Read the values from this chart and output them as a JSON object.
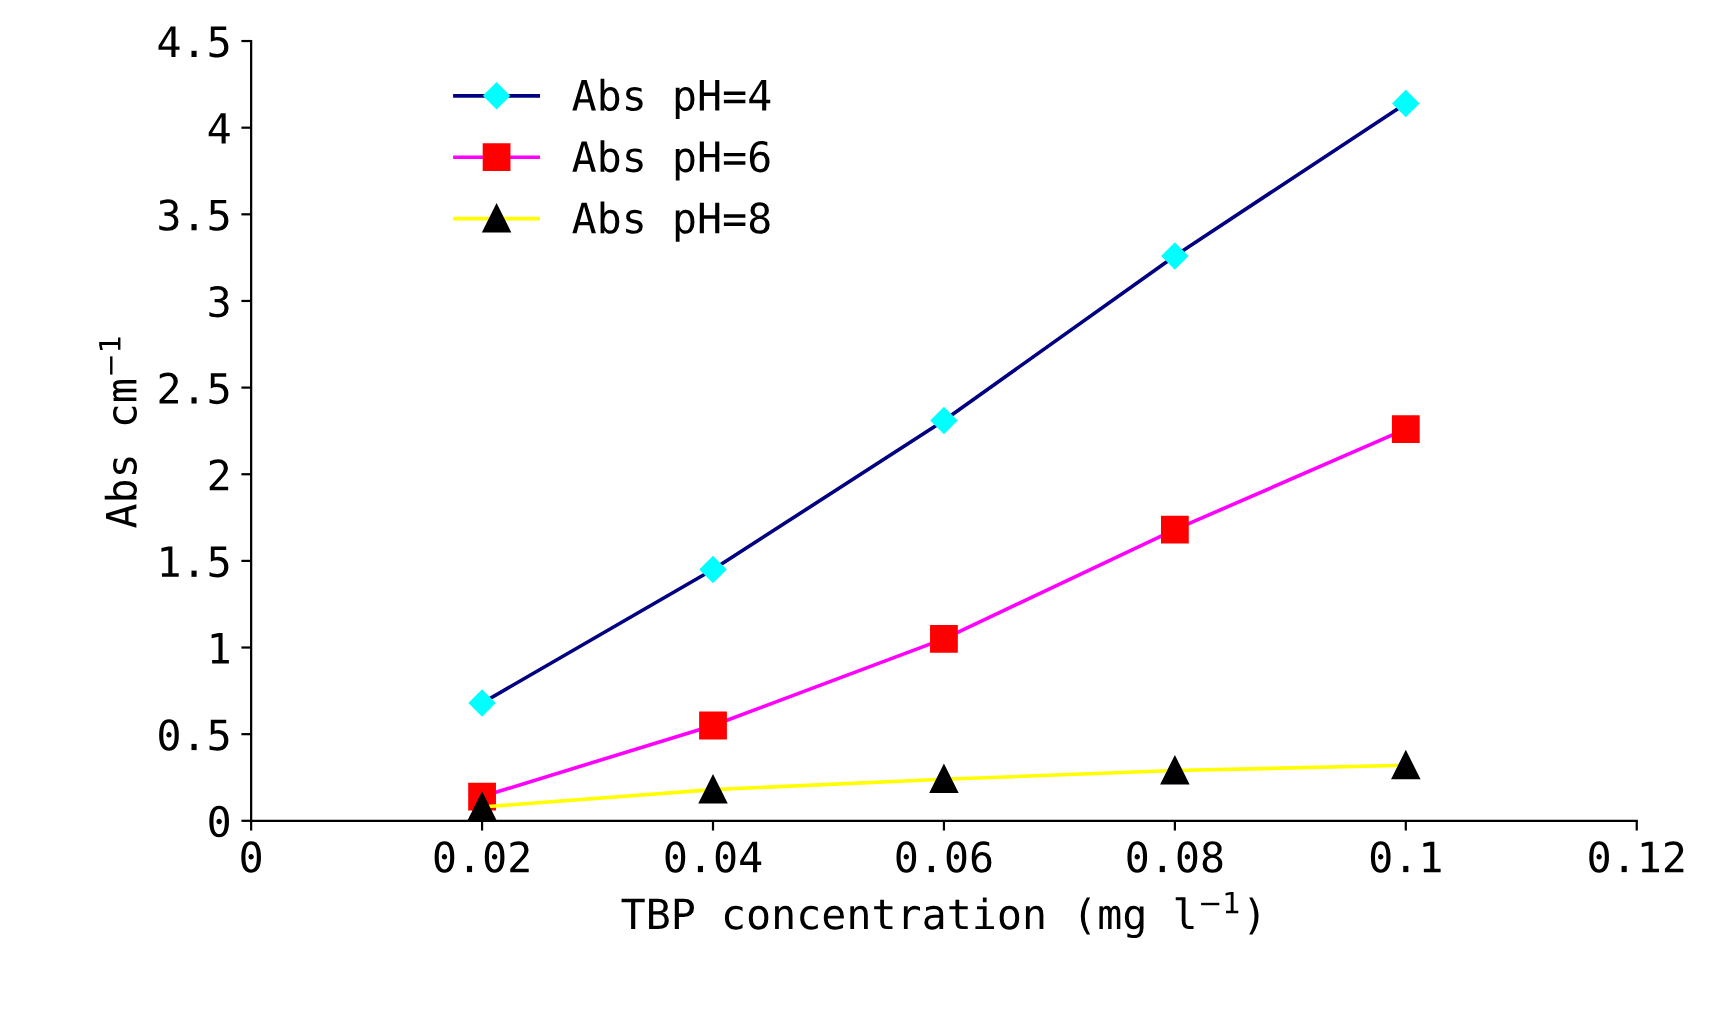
{
  "chart_data": {
    "type": "line",
    "xlabel": "TBP concentration (mg l$^{−1}$)",
    "ylabel": "Abs cm$^{−1}$",
    "x": [
      0.02,
      0.04,
      0.06,
      0.08,
      0.1
    ],
    "series": [
      {
        "name": "Abs pH=4",
        "color": "#000080",
        "colors": [
          "#00ffff",
          "#00ffff",
          "#00ffff",
          "#00ffff",
          "#00ffff"
        ],
        "marker": "diamond",
        "values": [
          0.68,
          1.45,
          2.31,
          3.26,
          4.14
        ]
      },
      {
        "name": "Abs pH=6",
        "color": "#ff00ff",
        "colors": [
          "#ff0000",
          "#ff0000",
          "#ff0000",
          "#ff0000",
          "#ff0000"
        ],
        "marker": "square",
        "values": [
          0.14,
          0.55,
          1.05,
          1.68,
          2.26
        ]
      },
      {
        "name": "Abs pH=8",
        "color": "#ffff00",
        "colors": [
          "#000000",
          "#000000",
          "#000000",
          "#000000",
          "#000000"
        ],
        "marker": "triangle",
        "values": [
          0.08,
          0.18,
          0.24,
          0.29,
          0.32
        ]
      }
    ],
    "xlim": [
      0,
      0.12
    ],
    "xticks": [
      0,
      0.02,
      0.04,
      0.06,
      0.08,
      {
        "value": 0.1,
        "label": "0.1"
      },
      0.12
    ],
    "ylim": [
      0,
      4.5
    ],
    "yticks": [
      0,
      0.5,
      1,
      1.5,
      2,
      2.5,
      3,
      3.5,
      4,
      4.5
    ],
    "grid": false,
    "legend": "top left",
    "line_style": "solid"
  }
}
